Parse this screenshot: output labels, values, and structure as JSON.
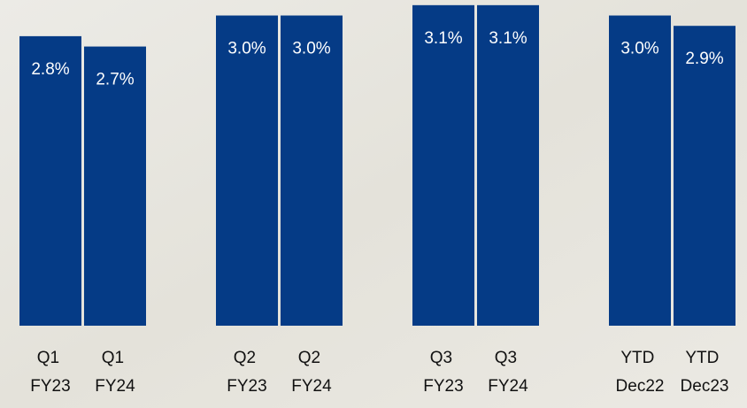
{
  "chart_data": {
    "type": "bar",
    "categories": [
      "Q1 FY23",
      "Q1 FY24",
      "Q2 FY23",
      "Q2 FY24",
      "Q3 FY23",
      "Q3 FY24",
      "YTD Dec22",
      "YTD Dec23"
    ],
    "values": [
      2.8,
      2.7,
      3.0,
      3.0,
      3.1,
      3.1,
      3.0,
      2.9
    ],
    "value_labels": [
      "2.8%",
      "2.7%",
      "3.0%",
      "3.0%",
      "3.1%",
      "3.1%",
      "3.0%",
      "2.9%"
    ],
    "color": "#053b86",
    "ylim": [
      0,
      3.15
    ]
  }
}
